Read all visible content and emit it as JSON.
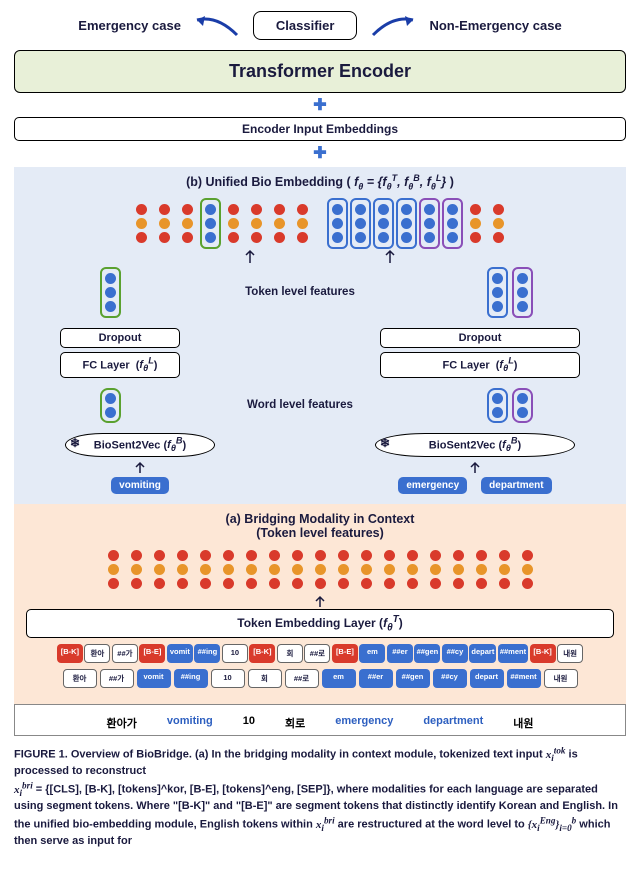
{
  "colors": {
    "red": "#d93a2b",
    "orange": "#e8952a",
    "blue": "#3a6fcf",
    "green": "#5aa12f",
    "purple": "#8a4fb8",
    "panel_b_bg": "#e4ebf6",
    "panel_a_bg": "#fde7d6",
    "encoder_bg": "#e8f0d8",
    "text": "#1a1a3e"
  },
  "top": {
    "left_label": "Emergency case",
    "right_label": "Non-Emergency case",
    "classifier": "Classifier"
  },
  "encoder": "Transformer Encoder",
  "input_emb": "Encoder Input Embeddings",
  "panel_b": {
    "title_prefix": "(b) Unified Bio Embedding ( ",
    "formula": "f_θ = {f_θ^T, f_θ^B, f_θ^L}",
    "title_suffix": " )",
    "token_level_label": "Token level features",
    "word_level_label": "Word level features",
    "dropout": "Dropout",
    "fc_layer_left": "FC Layer  ( f_θ^L )",
    "fc_layer_right": "FC Layer  ( f_θ^L )",
    "biosent_left": "BioSent2Vec ( f_θ^B )",
    "biosent_right": "BioSent2Vec ( f_θ^B )",
    "word_left": "vomiting",
    "words_right": [
      "emergency",
      "department"
    ]
  },
  "panel_a": {
    "title1": "(a) Bridging Modality in Context",
    "title2": "(Token level features)",
    "tok_emb_layer": "Token Embedding Layer ( f_θ^T )",
    "row_seg": [
      "[B-K]",
      "환아",
      "##가",
      "[B-E]",
      "vomit",
      "##ing",
      "10",
      "[B-K]",
      "회",
      "##로",
      "[B-E]",
      "em",
      "##er",
      "##gen",
      "##cy",
      "depart",
      "##ment",
      "[B-K]",
      "내원"
    ],
    "row_plain": [
      "환아",
      "##가",
      "vomit",
      "##ing",
      "10",
      "회",
      "##로",
      "em",
      "##er",
      "##gen",
      "##cy",
      "depart",
      "##ment",
      "내원"
    ],
    "row_plain_styles": [
      "white",
      "white",
      "blue",
      "blue",
      "white",
      "white",
      "white",
      "blue",
      "blue",
      "blue",
      "blue",
      "blue",
      "blue",
      "white"
    ]
  },
  "source": {
    "words": [
      "환아가",
      "vomiting",
      "10",
      "회로",
      "emergency",
      "department",
      "내원"
    ],
    "styles": [
      "k",
      "e",
      "k",
      "k",
      "e",
      "e",
      "k"
    ]
  },
  "caption": {
    "fig": "FIGURE 1.",
    "line1": "Overview of BioBridge. (a) In the bridging modality in context module, tokenized text input ",
    "sym1": "x_i^tok",
    "line2": " is processed to reconstruct",
    "line3a": "x_i^bri",
    "line3b": " = {[CLS], [B-K], [tokens]^kor, [B-E], [tokens]^eng, [SEP]}, where modalities for each language are separated using segment tokens. Where \"[B-K]\" and \"[B-E]\" are segment tokens that distinctly identify Korean and English. In the unified bio-embedding module, English tokens within ",
    "sym2": "x_i^bri",
    "line4": " are restructured at the word level to ",
    "sym3": "{x_i^Eng}_{i=0}^b",
    "line5": " which then serve as input for"
  },
  "stacks": {
    "unified_row": [
      {
        "dots": [
          "red",
          "orange",
          "red"
        ],
        "border": null
      },
      {
        "dots": [
          "red",
          "orange",
          "red"
        ],
        "border": null
      },
      {
        "dots": [
          "red",
          "orange",
          "red"
        ],
        "border": null
      },
      {
        "dots": [
          "blue",
          "blue",
          "blue"
        ],
        "border": "green"
      },
      {
        "dots": [
          "red",
          "orange",
          "red"
        ],
        "border": null
      },
      {
        "dots": [
          "red",
          "orange",
          "red"
        ],
        "border": null
      },
      {
        "dots": [
          "red",
          "orange",
          "red"
        ],
        "border": null
      },
      {
        "dots": [
          "red",
          "orange",
          "red"
        ],
        "border": null
      },
      {
        "dots": [
          "blue",
          "blue",
          "blue"
        ],
        "border": "blue"
      },
      {
        "dots": [
          "blue",
          "blue",
          "blue"
        ],
        "border": "blue"
      },
      {
        "dots": [
          "blue",
          "blue",
          "blue"
        ],
        "border": "blue"
      },
      {
        "dots": [
          "blue",
          "blue",
          "blue"
        ],
        "border": "blue"
      },
      {
        "dots": [
          "blue",
          "blue",
          "blue"
        ],
        "border": "purple"
      },
      {
        "dots": [
          "blue",
          "blue",
          "blue"
        ],
        "border": "purple"
      },
      {
        "dots": [
          "red",
          "orange",
          "red"
        ],
        "border": null
      },
      {
        "dots": [
          "red",
          "orange",
          "red"
        ],
        "border": null
      }
    ],
    "token_left": [
      {
        "dots": [
          "blue",
          "blue",
          "blue"
        ],
        "border": "green"
      }
    ],
    "token_right": [
      {
        "dots": [
          "blue",
          "blue",
          "blue"
        ],
        "border": "blue"
      },
      {
        "dots": [
          "blue",
          "blue",
          "blue"
        ],
        "border": "purple"
      }
    ],
    "word_left": [
      {
        "dots": [
          "blue",
          "blue"
        ],
        "border": "green"
      }
    ],
    "word_right": [
      {
        "dots": [
          "blue",
          "blue"
        ],
        "border": "blue"
      },
      {
        "dots": [
          "blue",
          "blue"
        ],
        "border": "purple"
      }
    ],
    "panel_a_row": [
      {
        "dots": [
          "red",
          "orange",
          "red"
        ],
        "border": null
      },
      {
        "dots": [
          "red",
          "orange",
          "red"
        ],
        "border": null
      },
      {
        "dots": [
          "red",
          "orange",
          "red"
        ],
        "border": null
      },
      {
        "dots": [
          "red",
          "orange",
          "red"
        ],
        "border": null
      },
      {
        "dots": [
          "red",
          "orange",
          "red"
        ],
        "border": null
      },
      {
        "dots": [
          "red",
          "orange",
          "red"
        ],
        "border": null
      },
      {
        "dots": [
          "red",
          "orange",
          "red"
        ],
        "border": null
      },
      {
        "dots": [
          "red",
          "orange",
          "red"
        ],
        "border": null
      },
      {
        "dots": [
          "red",
          "orange",
          "red"
        ],
        "border": null
      },
      {
        "dots": [
          "red",
          "orange",
          "red"
        ],
        "border": null
      },
      {
        "dots": [
          "red",
          "orange",
          "red"
        ],
        "border": null
      },
      {
        "dots": [
          "red",
          "orange",
          "red"
        ],
        "border": null
      },
      {
        "dots": [
          "red",
          "orange",
          "red"
        ],
        "border": null
      },
      {
        "dots": [
          "red",
          "orange",
          "red"
        ],
        "border": null
      },
      {
        "dots": [
          "red",
          "orange",
          "red"
        ],
        "border": null
      },
      {
        "dots": [
          "red",
          "orange",
          "red"
        ],
        "border": null
      },
      {
        "dots": [
          "red",
          "orange",
          "red"
        ],
        "border": null
      },
      {
        "dots": [
          "red",
          "orange",
          "red"
        ],
        "border": null
      },
      {
        "dots": [
          "red",
          "orange",
          "red"
        ],
        "border": null
      }
    ],
    "seg_styles": [
      "red",
      "white",
      "white",
      "red",
      "blue",
      "blue",
      "white",
      "red",
      "white",
      "white",
      "red",
      "blue",
      "blue",
      "blue",
      "blue",
      "blue",
      "blue",
      "red",
      "white"
    ]
  }
}
